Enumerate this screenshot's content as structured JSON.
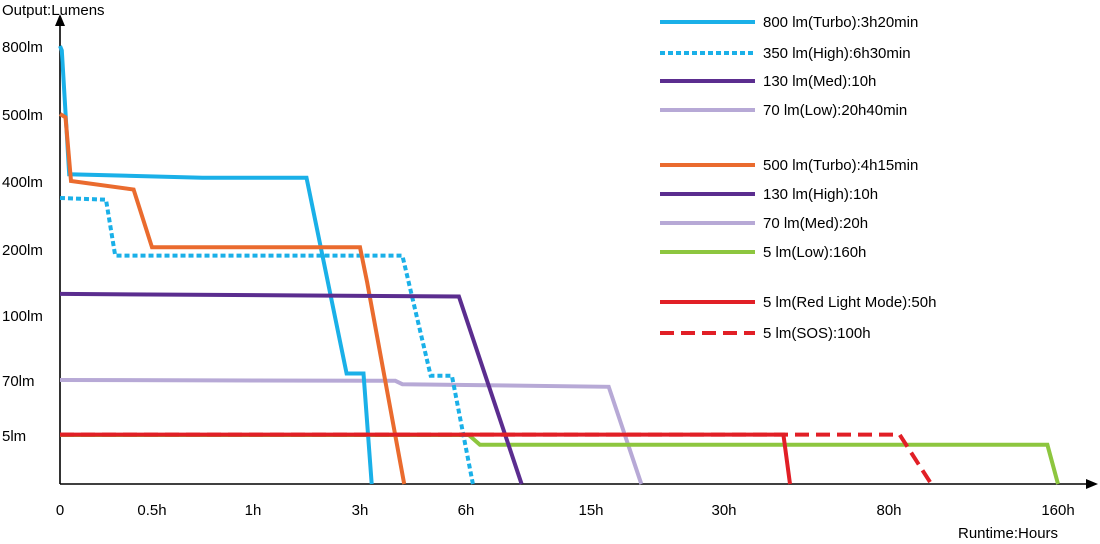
{
  "chart_data": {
    "type": "line",
    "ylabel": "Output:Lumens",
    "xlabel": "Runtime:Hours",
    "x_ticks": [
      "0",
      "0.5h",
      "1h",
      "3h",
      "6h",
      "15h",
      "30h",
      "80h",
      "160h"
    ],
    "y_ticks": [
      "5lm",
      "70lm",
      "100lm",
      "200lm",
      "400lm",
      "500lm",
      "800lm"
    ],
    "x_scale": "non-linear (tick positions as labeled)",
    "y_scale": "non-linear (tick positions as labeled)",
    "legend_position": "top-right",
    "series": [
      {
        "name": "800 lm(Turbo):3h20min",
        "color": "#1ab0e8",
        "dash": "solid",
        "points": [
          [
            0,
            800
          ],
          [
            0.01,
            780
          ],
          [
            0.05,
            410
          ],
          [
            0.75,
            405
          ],
          [
            2,
            405
          ],
          [
            2.75,
            73
          ],
          [
            3.1,
            73
          ],
          [
            3.33,
            0
          ]
        ]
      },
      {
        "name": "350 lm(High):6h30min",
        "color": "#1ab0e8",
        "dash": "dotted",
        "points": [
          [
            0,
            350
          ],
          [
            0.25,
            345
          ],
          [
            0.3,
            190
          ],
          [
            4.2,
            190
          ],
          [
            5,
            72
          ],
          [
            5.6,
            72
          ],
          [
            6.5,
            0
          ]
        ]
      },
      {
        "name": "130 lm(Med):10h",
        "color": "#5b2d8f",
        "dash": "solid",
        "points": [
          [
            0,
            132
          ],
          [
            5.8,
            128
          ],
          [
            10,
            0
          ]
        ]
      },
      {
        "name": "70 lm(Low):20h40min",
        "color": "#b7a9d6",
        "dash": "solid",
        "points": [
          [
            0,
            70
          ],
          [
            4,
            69
          ],
          [
            4.2,
            65
          ],
          [
            17,
            62
          ],
          [
            20.67,
            0
          ]
        ]
      },
      {
        "name": "500 lm(Turbo):4h15min",
        "color": "#ea6b2e",
        "dash": "solid",
        "points": [
          [
            0,
            500
          ],
          [
            0.03,
            495
          ],
          [
            0.06,
            400
          ],
          [
            0.4,
            375
          ],
          [
            0.5,
            205
          ],
          [
            3,
            205
          ],
          [
            3.2,
            150
          ],
          [
            4.25,
            0
          ]
        ]
      },
      {
        "name": "130 lm(High):10h",
        "color": "#5b2d8f",
        "dash": "solid",
        "points": []
      },
      {
        "name": "70 lm(Med):20h",
        "color": "#b7a9d6",
        "dash": "solid",
        "points": []
      },
      {
        "name": "5 lm(Low):160h",
        "color": "#8dc63f",
        "dash": "solid",
        "points": [
          [
            0,
            5
          ],
          [
            6.2,
            5
          ],
          [
            7,
            4
          ],
          [
            155,
            4
          ],
          [
            160,
            0
          ]
        ]
      },
      {
        "name": "5 lm(Red Light Mode):50h",
        "color": "#e11f26",
        "dash": "solid",
        "points": [
          [
            0,
            5.5
          ],
          [
            48,
            5.5
          ],
          [
            50,
            0
          ]
        ]
      },
      {
        "name": "5 lm(SOS):100h",
        "color": "#e11f26",
        "dash": "dashed",
        "points": [
          [
            0,
            5.5
          ],
          [
            85,
            5.5
          ],
          [
            100,
            0
          ]
        ]
      }
    ]
  }
}
